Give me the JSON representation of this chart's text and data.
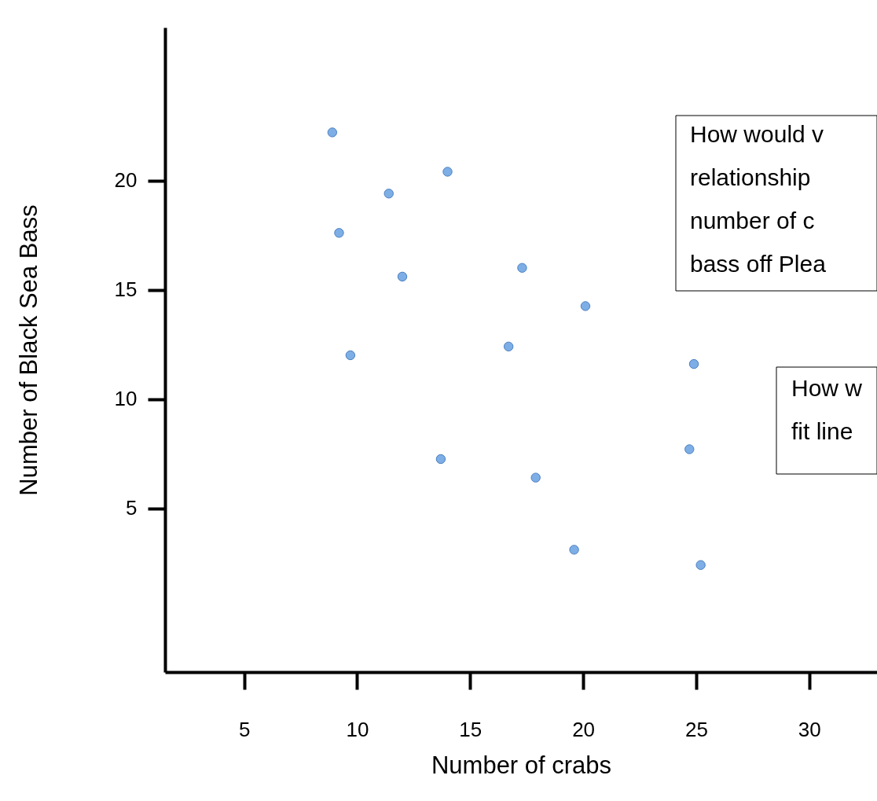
{
  "chart_data": {
    "type": "scatter",
    "xlabel": "Number of crabs",
    "ylabel": "Number of Black Sea Bass",
    "x": [
      8.9,
      14.0,
      11.4,
      9.2,
      12.0,
      17.3,
      20.1,
      16.7,
      9.7,
      24.9,
      13.7,
      24.7,
      17.9,
      19.6,
      25.2
    ],
    "series": [
      {
        "color": "#7eaee6",
        "values": [
          22.2,
          20.4,
          19.4,
          17.6,
          15.6,
          16.0,
          14.25,
          12.4,
          12.0,
          11.6,
          7.25,
          7.7,
          6.4,
          3.1,
          2.4
        ]
      }
    ],
    "xlim": [
      1.5,
      33
    ],
    "xticks": [
      5,
      10,
      15,
      20,
      25,
      30
    ],
    "ylim": [
      -2.5,
      27
    ],
    "yticks": [
      5,
      10,
      15,
      20
    ],
    "grid": false,
    "marker": "circle",
    "annotations": [
      "How would v\nrelationship\nnumber of c\nbass off Plea",
      "How w\nfit line"
    ]
  }
}
